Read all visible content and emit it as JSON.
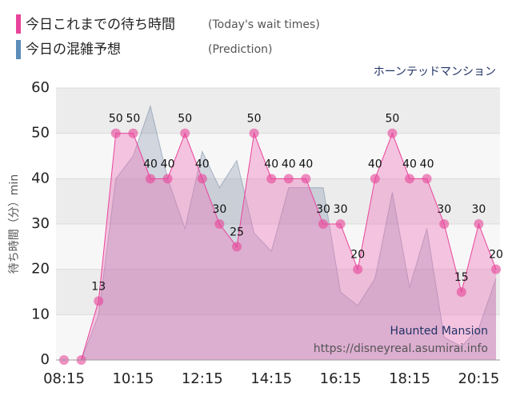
{
  "chart_data": {
    "type": "area",
    "subtitle": "ホーンテッドマンション",
    "y_label": "待ち時間（分）min",
    "watermark": [
      "Haunted Mansion",
      "https://disneyreal.asumirai.info"
    ],
    "categories": [
      "08:15",
      null,
      null,
      null,
      "10:15",
      null,
      null,
      null,
      "12:15",
      null,
      null,
      null,
      "14:15",
      null,
      null,
      null,
      "16:15",
      null,
      null,
      null,
      "18:15",
      null,
      null,
      null,
      "20:15",
      null
    ],
    "series": [
      {
        "name": "今日これまでの待ち時間",
        "note": "(Today's wait times)",
        "color": "#e8449a",
        "values": [
          0,
          0,
          13,
          50,
          50,
          40,
          40,
          50,
          40,
          30,
          25,
          50,
          40,
          40,
          40,
          30,
          30,
          20,
          40,
          50,
          40,
          40,
          30,
          15,
          30,
          20
        ]
      },
      {
        "name": "今日の混雑予想",
        "note": "(Prediction)",
        "color": "#5b8db8",
        "values": [
          0,
          0,
          10,
          40,
          45,
          56,
          40,
          29,
          46,
          38,
          44,
          28,
          24,
          38,
          38,
          38,
          15,
          12,
          18,
          37,
          16,
          29,
          5,
          3,
          7,
          18
        ]
      }
    ],
    "ylim": [
      0,
      60
    ],
    "yticks": [
      0,
      10,
      20,
      30,
      40,
      50,
      60
    ],
    "grid": true
  }
}
